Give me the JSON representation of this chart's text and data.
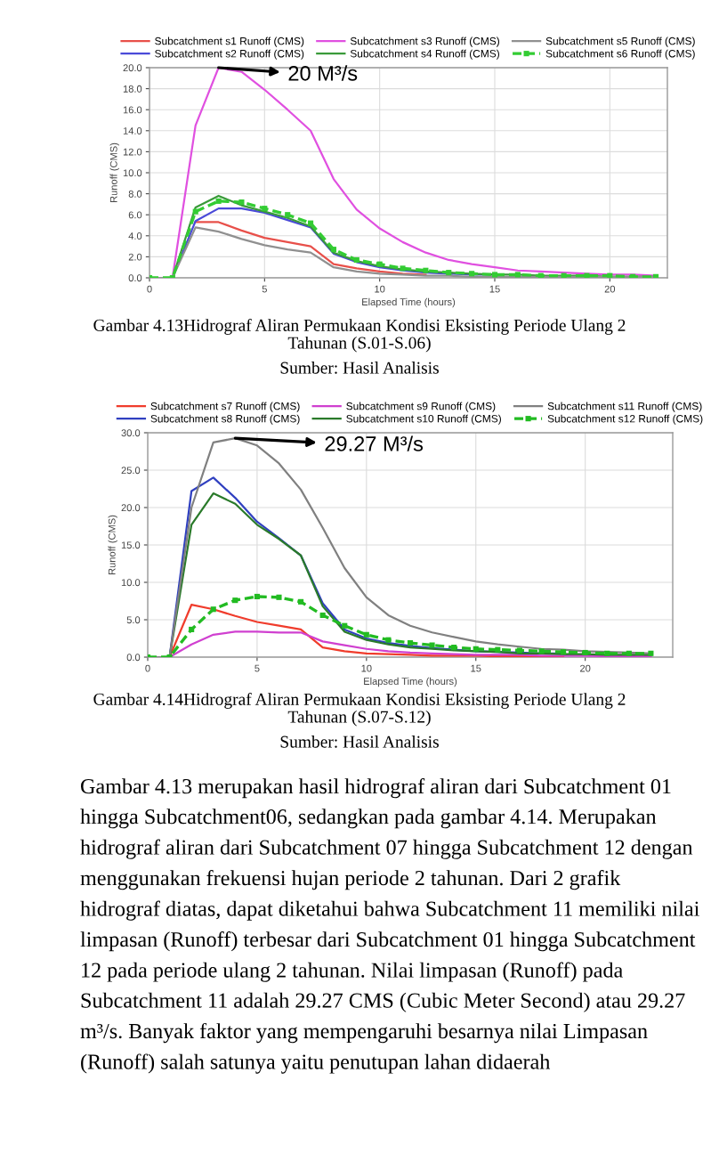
{
  "chart_data": [
    {
      "type": "line",
      "title": "Gambar 4.13Hidrograf Aliran Permukaan Kondisi Eksisting Periode Ulang 2 Tahunan (S.01-S.06)",
      "subtitle": "Sumber: Hasil Analisis",
      "xlabel": "Elapsed Time (hours)",
      "ylabel": "Runoff (CMS)",
      "x": [
        0,
        1,
        2,
        3,
        4,
        5,
        6,
        7,
        8,
        9,
        10,
        11,
        12,
        13,
        14,
        15,
        16,
        17,
        18,
        19,
        20,
        21,
        22
      ],
      "xlim": [
        0,
        22.5
      ],
      "xticks": [
        0,
        5,
        10,
        15,
        20
      ],
      "ylim": [
        0,
        20
      ],
      "yticks": [
        {
          "value": 0,
          "label": "0.0"
        },
        {
          "value": 2,
          "label": "2.0"
        },
        {
          "value": 4,
          "label": "4.0"
        },
        {
          "value": 6,
          "label": "6.0"
        },
        {
          "value": 8,
          "label": "8.0"
        },
        {
          "value": 10,
          "label": "10.0"
        },
        {
          "value": 12,
          "label": "12.0"
        },
        {
          "value": 14,
          "label": "14.0"
        },
        {
          "value": 16,
          "label": "16.0"
        },
        {
          "value": 18,
          "label": "18.0"
        },
        {
          "value": 20,
          "label": "20.0"
        }
      ],
      "grid": true,
      "legend": "top",
      "series": [
        {
          "name": "Subcatchment s1 Runoff (CMS)",
          "color": "#e8504a",
          "values": [
            null,
            null,
            5.3,
            5.3,
            4.5,
            3.8,
            3.4,
            3.0,
            1.3,
            0.9,
            0.6,
            0.4,
            0.3,
            null,
            null,
            null,
            null,
            null,
            null,
            null,
            null,
            null,
            null
          ]
        },
        {
          "name": "Subcatchment s2 Runoff (CMS)",
          "color": "#4a4ad8",
          "values": [
            0,
            0,
            5.4,
            6.6,
            6.6,
            6.2,
            5.5,
            4.8,
            2.3,
            1.5,
            1.0,
            0.7,
            0.5,
            0.4,
            0.3,
            0.3,
            null,
            null,
            null,
            null,
            null,
            null,
            null
          ]
        },
        {
          "name": "Subcatchment s3 Runoff (CMS)",
          "color": "#e050e0",
          "values": [
            0,
            0,
            14.5,
            20.0,
            19.6,
            17.9,
            16.0,
            14.0,
            9.4,
            6.5,
            4.7,
            3.4,
            2.4,
            1.7,
            1.3,
            1.0,
            0.7,
            0.6,
            0.5,
            0.4,
            0.3,
            0.3,
            0.2
          ]
        },
        {
          "name": "Subcatchment s4 Runoff (CMS)",
          "color": "#3a9a3a",
          "values": [
            0,
            0,
            6.7,
            7.8,
            6.9,
            6.3,
            5.7,
            4.9,
            2.4,
            1.6,
            1.1,
            0.8,
            0.6,
            0.5,
            0.4,
            0.3,
            0.3,
            0.2,
            0.2,
            0.2,
            0.1,
            0.1,
            0.1
          ]
        },
        {
          "name": "Subcatchment s5 Runoff (CMS)",
          "color": "#909090",
          "values": [
            0,
            0,
            4.8,
            4.4,
            3.7,
            3.1,
            2.7,
            2.4,
            1.0,
            0.6,
            0.4,
            0.3,
            0.2,
            0.2,
            0.1,
            0.1,
            0.1,
            0.1,
            0.1,
            0.1,
            0.1,
            0.1,
            0.1
          ]
        },
        {
          "name": "Subcatchment s6 Runoff (CMS)",
          "color": "#33cc33",
          "line_style": "dashed",
          "marker": "square",
          "values": [
            0,
            0,
            6.3,
            7.3,
            7.2,
            6.6,
            6.0,
            5.2,
            2.7,
            1.7,
            1.3,
            0.9,
            0.7,
            0.5,
            0.4,
            0.3,
            0.3,
            0.2,
            0.2,
            0.2,
            0.2,
            0.1,
            0.1
          ]
        }
      ],
      "annotations": [
        {
          "text": "20 M³/s",
          "x": 3,
          "y": 20
        }
      ]
    },
    {
      "type": "line",
      "title": "Gambar 4.14Hidrograf Aliran Permukaan Kondisi Eksisting Periode Ulang 2 Tahunan (S.07-S.12)",
      "subtitle": "Sumber: Hasil Analisis",
      "xlabel": "Elapsed Time (hours)",
      "ylabel": "Runoff (CMS)",
      "x": [
        0,
        1,
        2,
        3,
        4,
        5,
        6,
        7,
        8,
        9,
        10,
        11,
        12,
        13,
        14,
        15,
        16,
        17,
        18,
        19,
        20,
        21,
        22,
        23
      ],
      "xlim": [
        0,
        24
      ],
      "xticks": [
        0,
        5,
        10,
        15,
        20
      ],
      "ylim": [
        0,
        30
      ],
      "yticks": [
        {
          "value": 0,
          "label": "0.0"
        },
        {
          "value": 5,
          "label": "5.0"
        },
        {
          "value": 10,
          "label": "10.0"
        },
        {
          "value": 15,
          "label": "15.0"
        },
        {
          "value": 20,
          "label": "20.0"
        },
        {
          "value": 25,
          "label": "25.0"
        },
        {
          "value": 30,
          "label": "30.0"
        }
      ],
      "grid": true,
      "legend": "top",
      "series": [
        {
          "name": "Subcatchment s7 Runoff (CMS)",
          "color": "#f03c2c",
          "values": [
            0,
            0,
            7.0,
            6.4,
            5.5,
            4.7,
            4.2,
            3.7,
            1.3,
            0.8,
            0.5,
            0.4,
            0.3,
            0.2,
            0.2,
            0.2,
            0.1,
            0.1,
            0.1,
            0.1,
            null,
            null,
            null,
            null
          ]
        },
        {
          "name": "Subcatchment s8 Runoff (CMS)",
          "color": "#3040c0",
          "values": [
            0,
            0,
            22.2,
            24.0,
            21.3,
            18.1,
            15.9,
            13.6,
            7.2,
            3.7,
            2.5,
            1.9,
            1.5,
            1.2,
            1.0,
            0.8,
            0.7,
            0.6,
            0.5,
            0.5,
            null,
            null,
            null,
            null
          ]
        },
        {
          "name": "Subcatchment s9 Runoff (CMS)",
          "color": "#d040d0",
          "values": [
            0,
            0,
            1.7,
            3.0,
            3.4,
            3.4,
            3.3,
            3.3,
            2.1,
            1.6,
            1.1,
            0.8,
            0.6,
            0.5,
            0.4,
            0.3,
            0.3,
            0.3,
            0.2,
            0.2,
            0.2,
            0.1,
            0.1,
            0.1
          ]
        },
        {
          "name": "Subcatchment s10 Runoff (CMS)",
          "color": "#2a7a2a",
          "values": [
            0,
            0,
            17.7,
            21.9,
            20.5,
            17.7,
            15.8,
            13.6,
            6.8,
            3.4,
            2.3,
            1.7,
            1.3,
            1.1,
            0.9,
            0.8,
            0.7,
            0.5,
            0.5,
            0.4,
            0.4,
            0.3,
            0.3,
            0.3
          ]
        },
        {
          "name": "Subcatchment s11 Runoff (CMS)",
          "color": "#808080",
          "values": [
            0,
            0,
            20.0,
            28.7,
            29.27,
            28.3,
            25.9,
            22.4,
            17.3,
            11.9,
            8.0,
            5.6,
            4.2,
            3.3,
            2.7,
            2.1,
            1.7,
            1.4,
            1.1,
            1.0,
            0.8,
            0.7,
            0.6,
            0.5
          ]
        },
        {
          "name": "Subcatchment s12 Runoff (CMS)",
          "color": "#22bb22",
          "line_style": "dashed",
          "marker": "square",
          "values": [
            0,
            0,
            3.7,
            6.4,
            7.6,
            8.1,
            8.0,
            7.4,
            5.6,
            4.2,
            3.0,
            2.3,
            1.9,
            1.6,
            1.3,
            1.1,
            1.0,
            0.9,
            0.8,
            0.7,
            0.6,
            0.5,
            0.5,
            0.5
          ]
        }
      ],
      "annotations": [
        {
          "text": "29.27 M³/s",
          "x": 4,
          "y": 29.27
        },
        "Gambar 4.13 merupakan hasil hidrograf aliran dari Subcatchment 01 hingga Subcatchment06, sedangkan pada gambar 4.14. Merupakan hidrograf aliran dari Subcatchment 07 hingga Subcatchment 12 dengan menggunakan frekuensi hujan periode 2 tahunan. Dari 2 grafik hidrograf diatas, dapat diketahui bahwa Subcatchment 11 memiliki nilai limpasan (Runoff) terbesar dari Subcatchment 01 hingga Subcatchment 12 pada periode ulang 2 tahunan. Nilai limpasan (Runoff) pada Subcatchment 11 adalah 29.27 CMS (Cubic Meter Second) atau 29.27 m³/s. Banyak faktor yang mempengaruhi besarnya nilai Limpasan (Runoff) salah satunya yaitu penutupan lahan didaerah"
      ]
    }
  ]
}
